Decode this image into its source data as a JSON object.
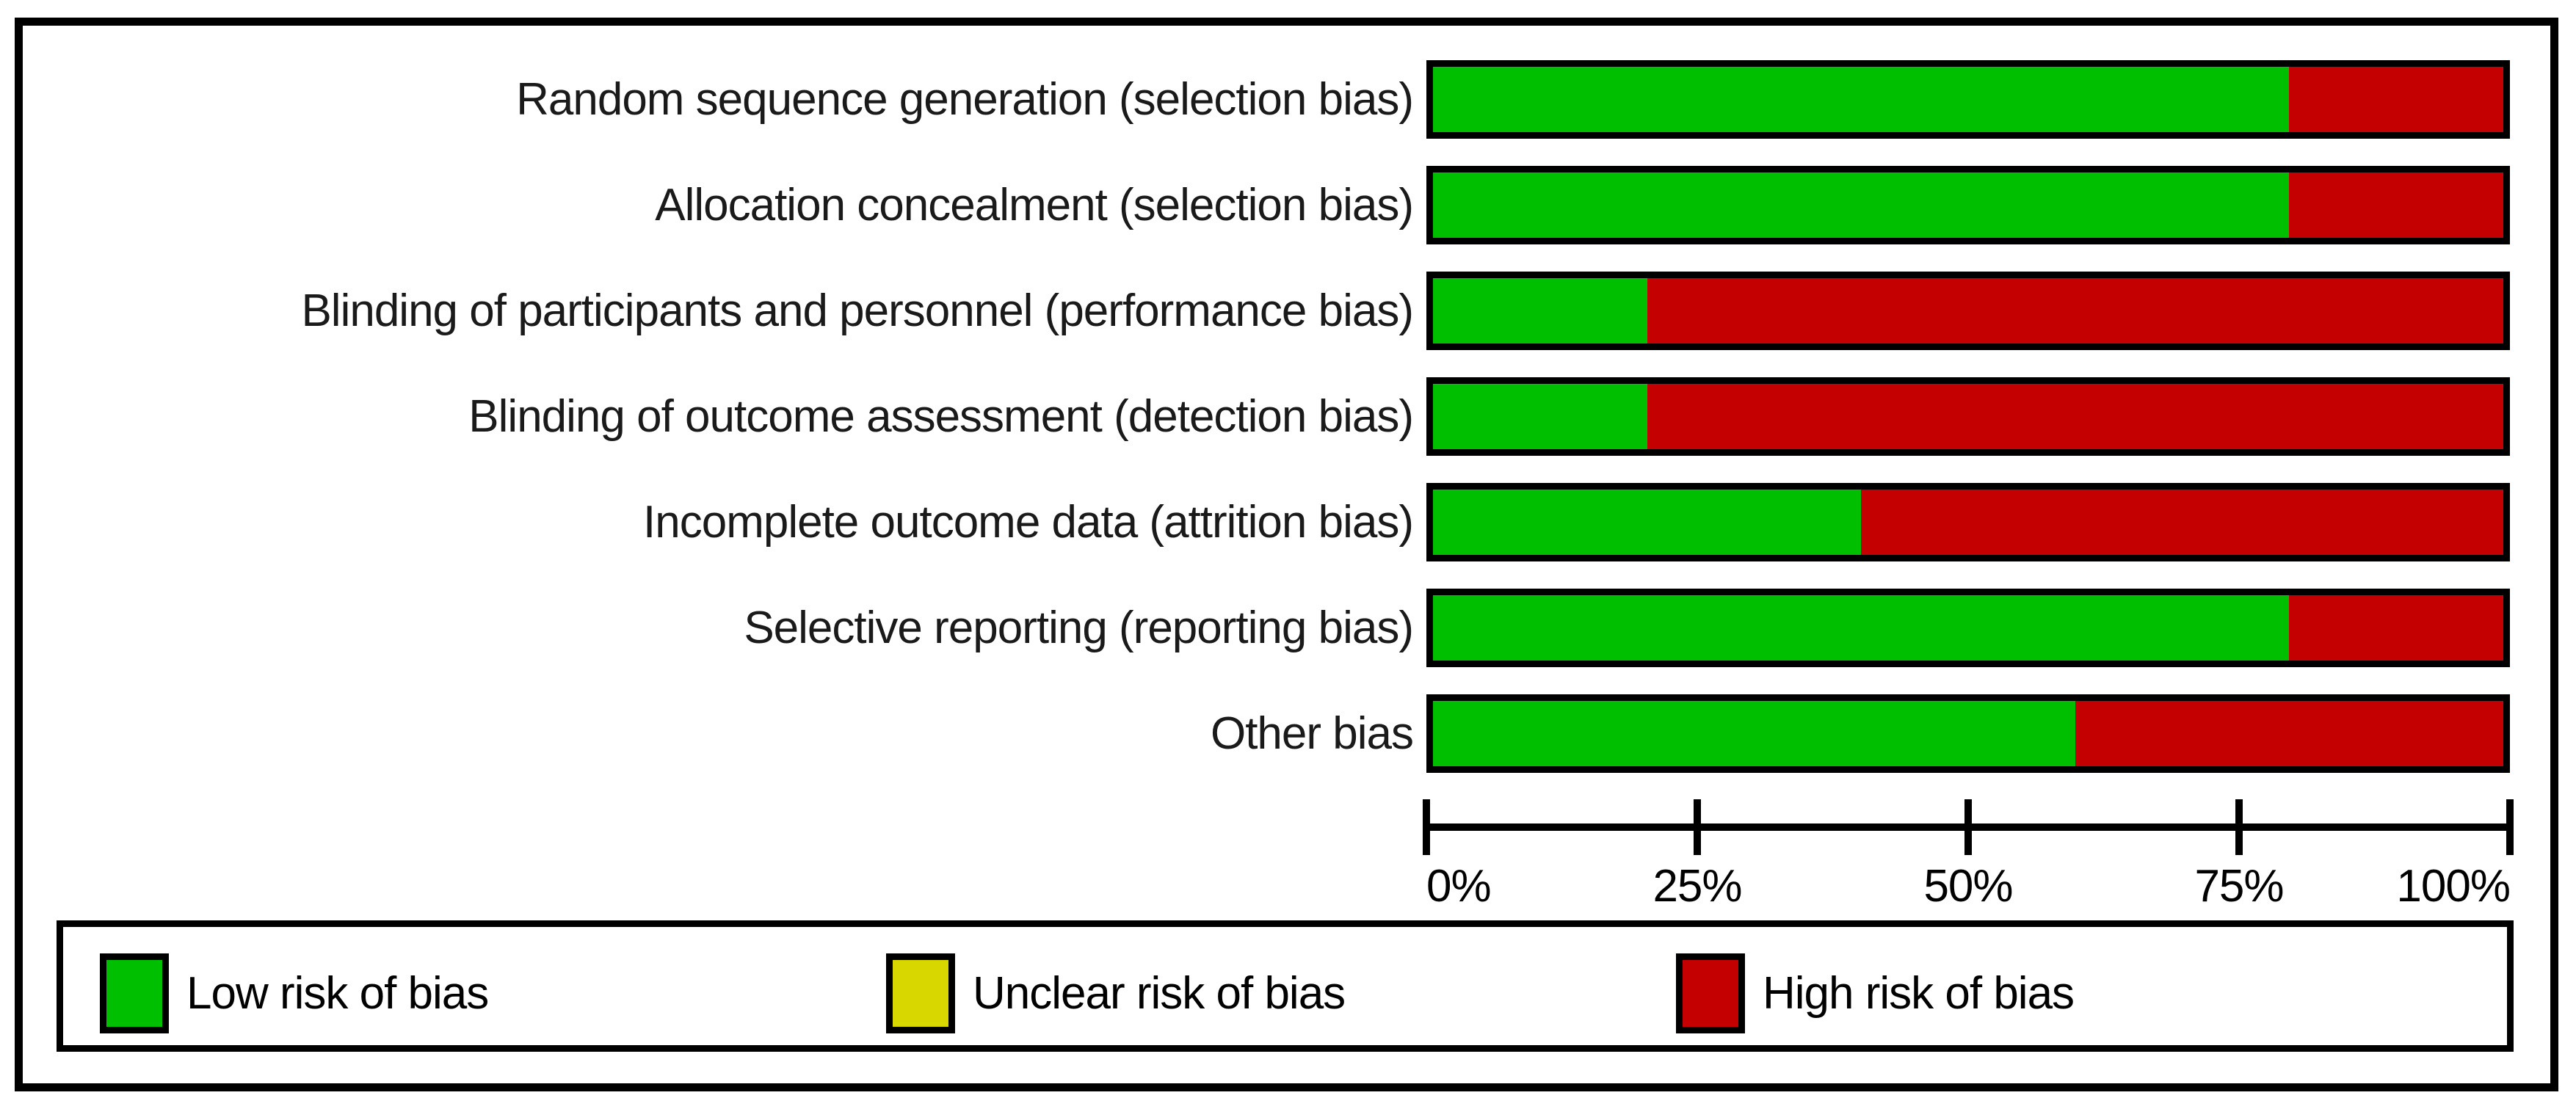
{
  "chart_data": {
    "type": "bar",
    "orientation": "horizontal",
    "stacked": true,
    "title": "",
    "xlabel": "",
    "ylabel": "",
    "xlim": [
      0,
      100
    ],
    "grid": false,
    "categories": [
      "Random sequence generation (selection bias)",
      "Allocation concealment (selection bias)",
      "Blinding of participants and personnel (performance bias)",
      "Blinding of outcome assessment (detection bias)",
      "Incomplete outcome data (attrition bias)",
      "Selective reporting (reporting bias)",
      "Other bias"
    ],
    "series": [
      {
        "name": "Low risk of bias",
        "color": "#00BE00",
        "values": [
          80,
          80,
          20,
          20,
          40,
          80,
          60
        ]
      },
      {
        "name": "Unclear risk of bias",
        "color": "#D8D800",
        "values": [
          0,
          0,
          0,
          0,
          0,
          0,
          0
        ]
      },
      {
        "name": "High risk of bias",
        "color": "#C50000",
        "values": [
          20,
          20,
          80,
          80,
          60,
          20,
          40
        ]
      }
    ],
    "x_ticks": [
      {
        "label": "0%",
        "value": 0
      },
      {
        "label": "25%",
        "value": 25
      },
      {
        "label": "50%",
        "value": 50
      },
      {
        "label": "75%",
        "value": 75
      },
      {
        "label": "100%",
        "value": 100
      }
    ],
    "legend_position": "bottom",
    "legend": [
      {
        "label": "Low risk of bias",
        "color": "#00BE00"
      },
      {
        "label": "Unclear risk of bias",
        "color": "#D8D800"
      },
      {
        "label": "High risk of bias",
        "color": "#C50000"
      }
    ]
  }
}
